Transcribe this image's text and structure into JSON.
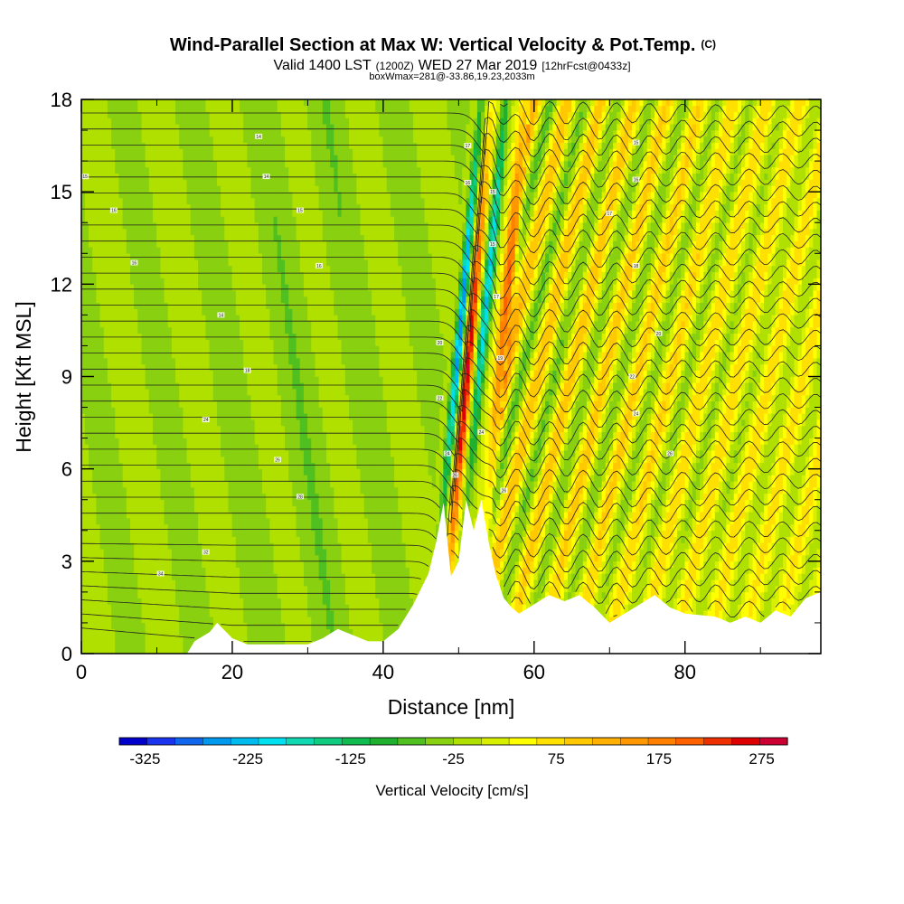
{
  "chart_data": {
    "type": "heatmap",
    "title_main": "Wind-Parallel Section at Max W: Vertical Velocity & Pot.Temp.",
    "title_unit": "(C)",
    "subtitle_parts": [
      "Valid 1400 LST",
      "(1200Z)",
      "WED 27 Mar 2019",
      "[12hrFcst@0433z]"
    ],
    "info_line": "boxWmax=281@-33.86,19.23,2033m",
    "xlabel": "Distance [nm]",
    "ylabel": "Height [Kft MSL]",
    "xlim": [
      0,
      98
    ],
    "ylim": [
      0,
      18
    ],
    "x_ticks": [
      "0",
      "20",
      "40",
      "60",
      "80"
    ],
    "y_ticks": [
      "0",
      "3",
      "6",
      "9",
      "12",
      "15",
      "18"
    ],
    "colorbar": {
      "label": "Vertical Velocity [cm/s]",
      "tick_labels": [
        "-325",
        "-225",
        "-125",
        "-25",
        "75",
        "175",
        "275"
      ],
      "tick_values": [
        -325,
        -225,
        -125,
        -25,
        75,
        175,
        275
      ],
      "range": [
        -350,
        300
      ],
      "colors": [
        "#0000cc",
        "#1a33ee",
        "#1166ee",
        "#0099ee",
        "#00bbee",
        "#00e0ee",
        "#10d8b0",
        "#10cc80",
        "#10bb50",
        "#20b030",
        "#50c020",
        "#88d010",
        "#b0e000",
        "#d8f000",
        "#ffff00",
        "#ffe000",
        "#ffc800",
        "#ffb000",
        "#ff9800",
        "#ff8000",
        "#ff6000",
        "#ee3000",
        "#dd0000",
        "#cc0033"
      ]
    },
    "max_w": 281,
    "updraft_location_nm": 50,
    "terrain": [
      [
        14,
        0
      ],
      [
        15,
        0.4
      ],
      [
        17,
        0.7
      ],
      [
        18,
        1.0
      ],
      [
        20,
        0.5
      ],
      [
        22,
        0.3
      ],
      [
        30,
        0.3
      ],
      [
        32,
        0.5
      ],
      [
        34,
        0.8
      ],
      [
        36,
        0.6
      ],
      [
        38,
        0.4
      ],
      [
        40,
        0.4
      ],
      [
        42,
        0.8
      ],
      [
        44,
        1.6
      ],
      [
        46,
        2.6
      ],
      [
        47,
        3.6
      ],
      [
        48,
        4.9
      ],
      [
        49,
        2.5
      ],
      [
        50,
        3.0
      ],
      [
        51,
        5.0
      ],
      [
        52,
        4.0
      ],
      [
        53,
        5.0
      ],
      [
        54,
        3.6
      ],
      [
        55,
        2.5
      ],
      [
        56,
        1.8
      ],
      [
        57,
        1.5
      ],
      [
        58,
        1.3
      ],
      [
        60,
        1.6
      ],
      [
        62,
        1.9
      ],
      [
        64,
        1.7
      ],
      [
        66,
        1.9
      ],
      [
        68,
        1.5
      ],
      [
        70,
        1.0
      ],
      [
        72,
        1.3
      ],
      [
        74,
        1.6
      ],
      [
        76,
        1.9
      ],
      [
        78,
        1.5
      ],
      [
        80,
        1.3
      ],
      [
        84,
        1.2
      ],
      [
        86,
        1.0
      ],
      [
        88,
        1.2
      ],
      [
        90,
        1.0
      ],
      [
        92,
        1.4
      ],
      [
        94,
        1.2
      ],
      [
        96,
        1.8
      ],
      [
        98,
        2.0
      ]
    ],
    "theta_contour_labels": [
      [
        0.5,
        15.5,
        "15"
      ],
      [
        4.3,
        14.4,
        "16"
      ],
      [
        7,
        12.7,
        "16"
      ],
      [
        18.5,
        11.0,
        "14"
      ],
      [
        23.5,
        16.8,
        "14"
      ],
      [
        24.5,
        15.5,
        "14"
      ],
      [
        29,
        14.4,
        "15"
      ],
      [
        31.5,
        12.6,
        "16"
      ],
      [
        22,
        9.2,
        "18"
      ],
      [
        16.5,
        7.6,
        "24"
      ],
      [
        26,
        6.3,
        "26"
      ],
      [
        29,
        5.1,
        "28"
      ],
      [
        16.5,
        3.3,
        "32"
      ],
      [
        10.5,
        2.6,
        "34"
      ],
      [
        51.2,
        16.5,
        "17"
      ],
      [
        51.2,
        15.3,
        "16"
      ],
      [
        54.5,
        15.0,
        "15"
      ],
      [
        54.5,
        13.3,
        "15"
      ],
      [
        55,
        11.6,
        "17"
      ],
      [
        55.5,
        9.6,
        "19"
      ],
      [
        47.5,
        10.1,
        "20"
      ],
      [
        47.5,
        8.3,
        "22"
      ],
      [
        48.5,
        6.5,
        "24"
      ],
      [
        49.5,
        5.8,
        "26"
      ],
      [
        53,
        7.2,
        "24"
      ],
      [
        56,
        5.3,
        "26"
      ],
      [
        73.5,
        16.6,
        "15"
      ],
      [
        73.5,
        15.4,
        "16"
      ],
      [
        70,
        14.3,
        "17"
      ],
      [
        73.5,
        12.6,
        "18"
      ],
      [
        76.5,
        10.4,
        "20"
      ],
      [
        73,
        9.0,
        "22"
      ],
      [
        73.5,
        7.8,
        "24"
      ],
      [
        78,
        6.5,
        "26"
      ]
    ]
  }
}
